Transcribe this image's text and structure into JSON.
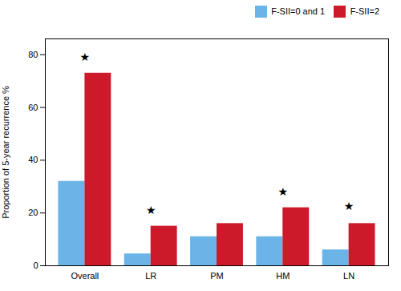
{
  "chart_data": {
    "type": "bar",
    "categories": [
      "Overall",
      "LR",
      "PM",
      "HM",
      "LN"
    ],
    "series": [
      {
        "name": "F-SII=0 and 1",
        "color": "#6ab4e8",
        "values": [
          32,
          4.5,
          11,
          11,
          6
        ]
      },
      {
        "name": "F-SII=2",
        "color": "#cc1a2a",
        "values": [
          73,
          15,
          16,
          22,
          16
        ]
      }
    ],
    "ylabel": "Proportion of 5-year recurrence %",
    "ylim": [
      0,
      86
    ],
    "yticks": [
      0,
      20,
      40,
      60,
      80
    ],
    "grid": false,
    "legend": "upper right",
    "annotations": [
      {
        "category": "Overall",
        "text": "★",
        "bracket_y": 75,
        "y": 77.5
      },
      {
        "category": "LR",
        "text": "★",
        "bracket_y": 17,
        "y": 19.5
      },
      {
        "category": "HM",
        "text": "★",
        "bracket_y": 24,
        "y": 26.5
      },
      {
        "category": "LN",
        "text": "★",
        "bracket_y": 18.5,
        "y": 21
      }
    ]
  }
}
